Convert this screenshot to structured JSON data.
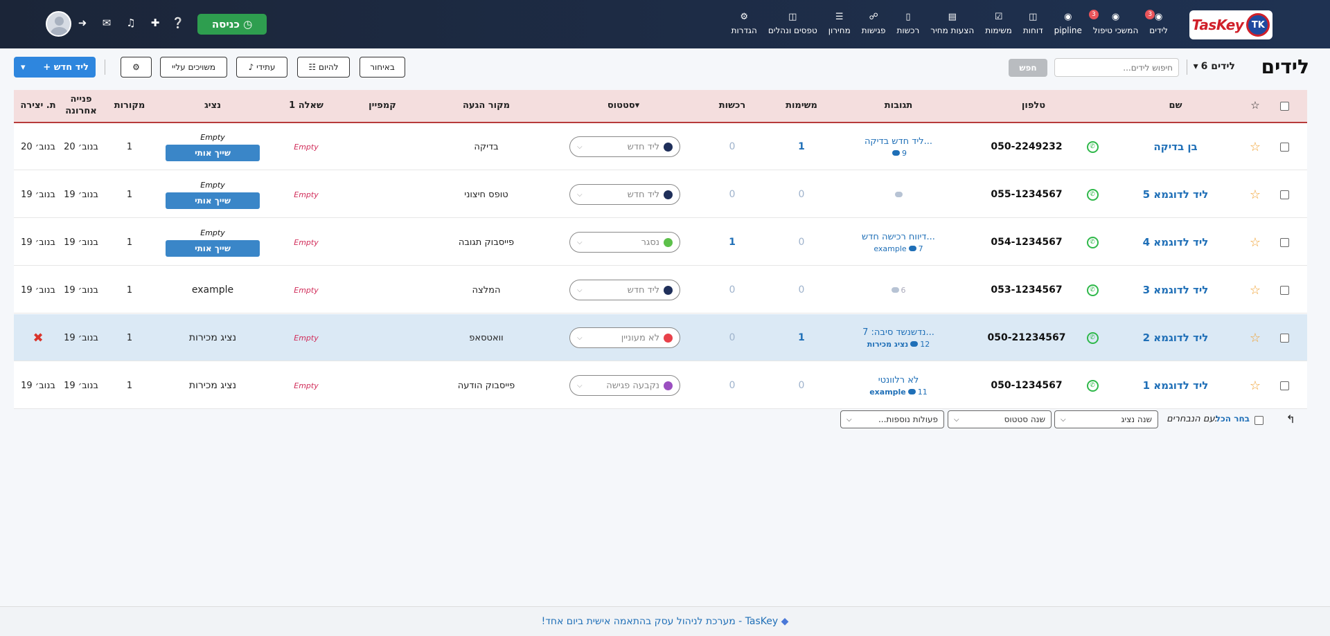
{
  "app": {
    "logo_text": "TasKey",
    "logo_mark": "TK"
  },
  "nav": {
    "items": [
      {
        "label": "לידים",
        "icon": "user-icon",
        "badge": "3"
      },
      {
        "label": "המשכי טיפול",
        "icon": "user-icon",
        "badge": "3"
      },
      {
        "label": "pipline",
        "icon": "user-icon",
        "badge": ""
      },
      {
        "label": "דוחות",
        "icon": "chart-icon",
        "badge": ""
      },
      {
        "label": "משימות",
        "icon": "check-icon",
        "badge": ""
      },
      {
        "label": "הצעות מחיר",
        "icon": "doc-icon",
        "badge": ""
      },
      {
        "label": "רכשות",
        "icon": "factory-icon",
        "badge": ""
      },
      {
        "label": "פגישות",
        "icon": "handshake-icon",
        "badge": ""
      },
      {
        "label": "מחירון",
        "icon": "barcode-icon",
        "badge": ""
      },
      {
        "label": "טפסים ונהלים",
        "icon": "book-icon",
        "badge": ""
      },
      {
        "label": "הגדרות",
        "icon": "cog-icon",
        "badge": ""
      }
    ],
    "enter_label": "כניסה",
    "icons": [
      "help-icon",
      "plus-icon",
      "bell-icon",
      "chat-icon",
      "signin-icon"
    ]
  },
  "toolbar": {
    "title": "לידים",
    "count_label": "6 לידים",
    "search_placeholder": "חיפוש לידים...",
    "search_button": "חפש",
    "late_label": "באיחור",
    "today_label": "להיום",
    "future_label": "עתידי",
    "assigned_label": "משויכים עליי",
    "new_lead_label": "ליד חדש"
  },
  "table": {
    "headers": {
      "name": "שם",
      "phone": "טלפון",
      "replies": "תגובות",
      "tasks": "משימות",
      "purchases": "רכשות",
      "status": "סטטוס",
      "source": "מקור הגעה",
      "campaign": "קמפיין",
      "question1": "שאלה 1",
      "agent": "נציג",
      "sources_count": "מקורות",
      "last_contact": "פנייה אחרונה",
      "created": "ת. יצירה"
    },
    "rows": [
      {
        "name": "בן בדיקה",
        "phone": "050-2249232",
        "reply_text": "ליד חדש בדיקה...",
        "reply_count": "9",
        "reply_user": "",
        "tasks": "1",
        "purchases": "0",
        "status": "ליד חדש",
        "status_color": "#1f2f5a",
        "source": "בדיקה",
        "question1": "Empty",
        "agent_empty": "Empty",
        "agent_button": "שייך אותי",
        "agent": "",
        "sources_count": "1",
        "last_contact": "20 בנוב׳",
        "created": "20 בנוב׳",
        "highlight": false
      },
      {
        "name": "ליד לדוגמא 5",
        "phone": "055-1234567",
        "reply_text": "",
        "reply_count": "",
        "reply_user": "",
        "tasks": "0",
        "purchases": "0",
        "status": "ליד חדש",
        "status_color": "#1f2f5a",
        "source": "טופס חיצוני",
        "question1": "Empty",
        "agent_empty": "Empty",
        "agent_button": "שייך אותי",
        "agent": "",
        "sources_count": "1",
        "last_contact": "19 בנוב׳",
        "created": "19 בנוב׳",
        "highlight": false
      },
      {
        "name": "ליד לדוגמא 4",
        "phone": "054-1234567",
        "reply_text": "דיווח רכישה חדש...",
        "reply_count": "7",
        "reply_user": "example",
        "tasks": "0",
        "purchases": "1",
        "status": "נסגר",
        "status_color": "#5cc04a",
        "source": "פייסבוק תגובה",
        "question1": "Empty",
        "agent_empty": "Empty",
        "agent_button": "שייך אותי",
        "agent": "",
        "sources_count": "1",
        "last_contact": "19 בנוב׳",
        "created": "19 בנוב׳",
        "highlight": false
      },
      {
        "name": "ליד לדוגמא 3",
        "phone": "053-1234567",
        "reply_text": "",
        "reply_count": "6",
        "reply_user": "",
        "tasks": "0",
        "purchases": "0",
        "status": "ליד חדש",
        "status_color": "#1f2f5a",
        "source": "המלצה",
        "question1": "Empty",
        "agent_empty": "",
        "agent_button": "",
        "agent": "example",
        "sources_count": "1",
        "last_contact": "19 בנוב׳",
        "created": "19 בנוב׳",
        "highlight": false
      },
      {
        "name": "ליד לדוגמא 2",
        "phone": "050-21234567",
        "reply_text": "נדשנשד סיבה: 7...",
        "reply_count": "12",
        "reply_user": "נציג מכירות",
        "tasks": "1",
        "purchases": "0",
        "status": "לא מעוניין",
        "status_color": "#e8414a",
        "source": "וואטסאפ",
        "question1": "Empty",
        "agent_empty": "",
        "agent_button": "",
        "agent": "נציג מכירות",
        "sources_count": "1",
        "last_contact": "19 בנוב׳",
        "created": "",
        "highlight": true
      },
      {
        "name": "ליד לדוגמא 1",
        "phone": "050-1234567",
        "reply_text": "לא רלוונטי",
        "reply_count": "11",
        "reply_user": "example",
        "tasks": "0",
        "purchases": "0",
        "status": "נקבעה פגישה",
        "status_color": "#9b4fc0",
        "source": "פייסבוק הודעה",
        "question1": "Empty",
        "agent_empty": "",
        "agent_button": "",
        "agent": "נציג מכירות",
        "sources_count": "1",
        "last_contact": "19 בנוב׳",
        "created": "19 בנוב׳",
        "highlight": false
      }
    ]
  },
  "bulk": {
    "select_all": "בחר הכל",
    "with_selected": "עם הנבחרים:",
    "change_agent": "שנה נציג",
    "change_status": "שנה סטטוס",
    "more_actions": "פעולות נוספות..."
  },
  "footer": {
    "text": "TasKey - מערכת לניהול עסק בהתאמה אישית ביום אחד!"
  }
}
